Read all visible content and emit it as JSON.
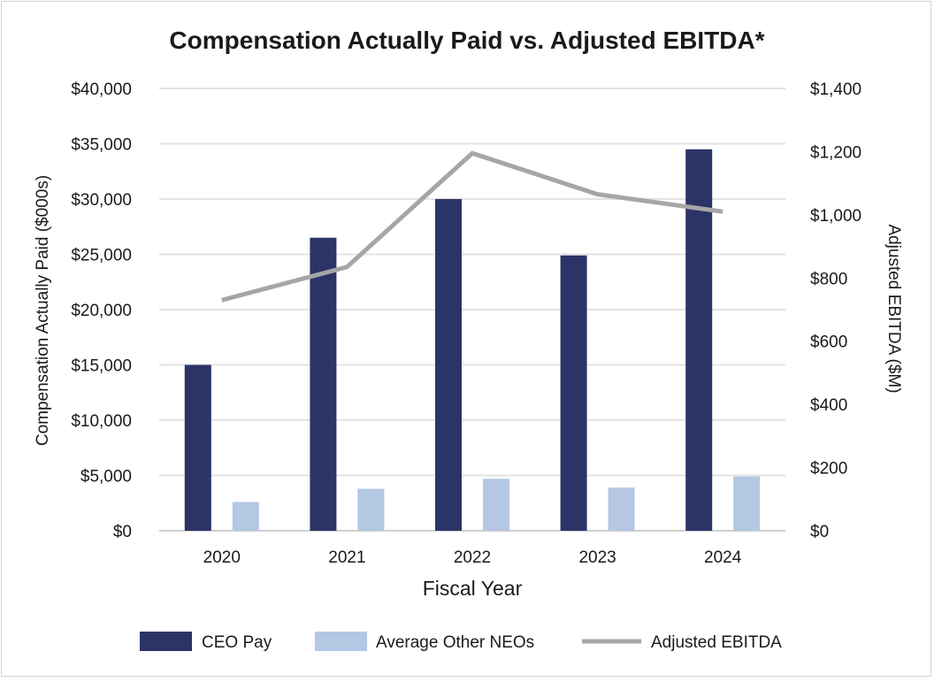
{
  "chart_data": {
    "type": "bar",
    "title": "Compensation Actually Paid vs. Adjusted EBITDA*",
    "xlabel": "Fiscal Year",
    "ylabel": "Compensation Actually Paid ($000s)",
    "y2label": "Adjusted EBITDA ($M)",
    "categories": [
      "2020",
      "2021",
      "2022",
      "2023",
      "2024"
    ],
    "ylim": [
      0,
      40000
    ],
    "y2lim": [
      0,
      1400
    ],
    "yticks": [
      0,
      5000,
      10000,
      15000,
      20000,
      25000,
      30000,
      35000,
      40000
    ],
    "ytick_labels": [
      "$0",
      "$5,000",
      "$10,000",
      "$15,000",
      "$20,000",
      "$25,000",
      "$30,000",
      "$35,000",
      "$40,000"
    ],
    "y2ticks": [
      0,
      200,
      400,
      600,
      800,
      1000,
      1200,
      1400
    ],
    "y2tick_labels": [
      "$0",
      "$200",
      "$400",
      "$600",
      "$800",
      "$1,000",
      "$1,200",
      "$1,400"
    ],
    "grid": true,
    "legend_position": "bottom",
    "series": [
      {
        "name": "CEO Pay",
        "kind": "bar",
        "axis": "left",
        "color": "#2b3467",
        "values": [
          15000,
          26500,
          30000,
          24900,
          34500
        ]
      },
      {
        "name": "Average Other NEOs",
        "kind": "bar",
        "axis": "left",
        "color": "#b4c7e3",
        "values": [
          2600,
          3800,
          4700,
          3900,
          4900
        ]
      },
      {
        "name": "Adjusted EBITDA",
        "kind": "line",
        "axis": "right",
        "color": "#a6a6a6",
        "values": [
          730,
          835,
          1195,
          1065,
          1010
        ]
      }
    ]
  }
}
